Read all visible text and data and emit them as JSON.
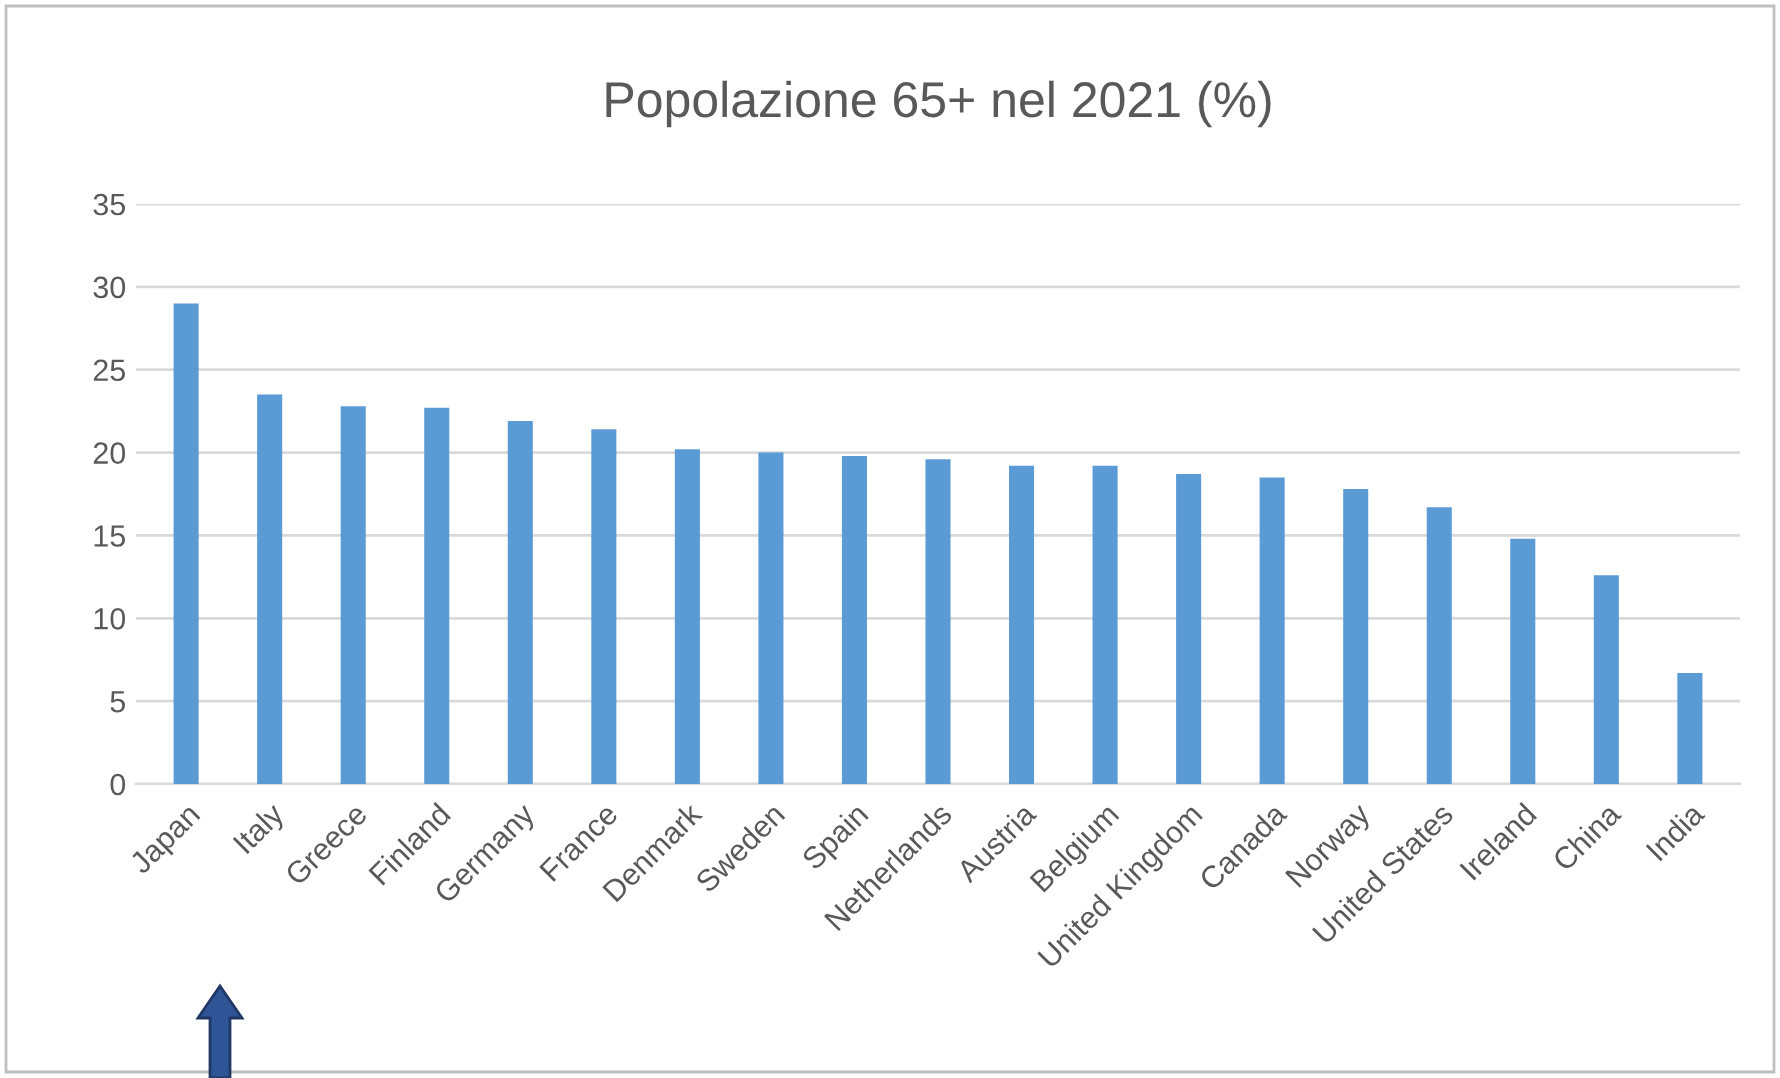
{
  "chart_data": {
    "type": "bar",
    "title": "Popolazione 65+ nel 2021 (%)",
    "categories": [
      "Japan",
      "Italy",
      "Greece",
      "Finland",
      "Germany",
      "France",
      "Denmark",
      "Sweden",
      "Spain",
      "Netherlands",
      "Austria",
      "Belgium",
      "United Kingdom",
      "Canada",
      "Norway",
      "United States",
      "Ireland",
      "China",
      "India"
    ],
    "values": [
      29.0,
      23.5,
      22.8,
      22.7,
      21.9,
      21.4,
      20.2,
      20.0,
      19.8,
      19.6,
      19.2,
      19.2,
      18.7,
      18.5,
      17.8,
      16.7,
      14.8,
      12.6,
      6.7
    ],
    "color": "#5b9bd5",
    "ylim": [
      0,
      35
    ],
    "yticks": [
      0,
      5,
      10,
      15,
      20,
      25,
      30,
      35
    ],
    "grid": "y",
    "legend": false
  }
}
